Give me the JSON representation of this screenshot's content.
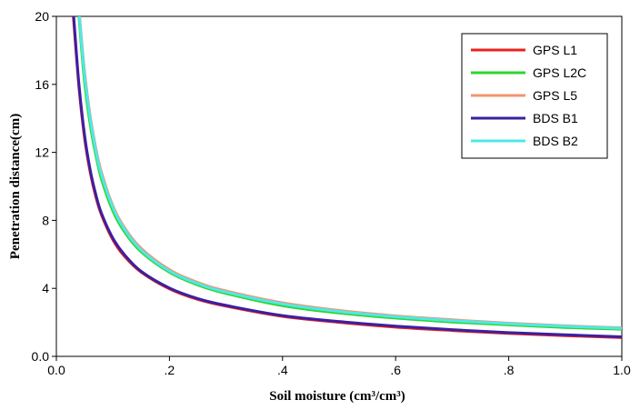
{
  "chart_data": {
    "type": "line",
    "title": "",
    "xlabel": "Soil moisture (cm³/cm³)",
    "ylabel": "Penetration distance(cm)",
    "xlim": [
      0,
      1
    ],
    "ylim": [
      0,
      20
    ],
    "x_ticks": [
      {
        "value": 0.0,
        "label": "0.0"
      },
      {
        "value": 0.2,
        "label": ".2"
      },
      {
        "value": 0.4,
        "label": ".4"
      },
      {
        "value": 0.6,
        "label": ".6"
      },
      {
        "value": 0.8,
        "label": ".8"
      },
      {
        "value": 1.0,
        "label": "1.0"
      }
    ],
    "y_ticks": [
      {
        "value": 0,
        "label": "0.0"
      },
      {
        "value": 4,
        "label": "4"
      },
      {
        "value": 8,
        "label": "8"
      },
      {
        "value": 12,
        "label": "12"
      },
      {
        "value": 16,
        "label": "16"
      },
      {
        "value": 20,
        "label": "20"
      }
    ],
    "grid": false,
    "legend_position": "top-right",
    "x": [
      0.03,
      0.04,
      0.05,
      0.06,
      0.07,
      0.08,
      0.1,
      0.12,
      0.15,
      0.2,
      0.25,
      0.3,
      0.4,
      0.5,
      0.6,
      0.7,
      0.8,
      0.9,
      1.0
    ],
    "series": [
      {
        "name": "GPS L1",
        "color": "#e8231e",
        "values": [
          20.0,
          15.8,
          12.8,
          10.8,
          9.35,
          8.3,
          6.85,
          5.9,
          4.95,
          3.97,
          3.35,
          2.95,
          2.35,
          2.0,
          1.72,
          1.52,
          1.35,
          1.22,
          1.1
        ]
      },
      {
        "name": "GPS L2C",
        "color": "#2fd42f",
        "values": [
          25.0,
          20.0,
          16.1,
          13.6,
          11.8,
          10.4,
          8.55,
          7.35,
          6.15,
          4.95,
          4.2,
          3.7,
          2.98,
          2.55,
          2.25,
          2.02,
          1.85,
          1.7,
          1.6
        ]
      },
      {
        "name": "GPS L5",
        "color": "#f2946e",
        "values": [
          25.5,
          20.5,
          16.7,
          14.1,
          12.2,
          10.8,
          8.85,
          7.6,
          6.35,
          5.1,
          4.35,
          3.85,
          3.15,
          2.7,
          2.38,
          2.15,
          1.95,
          1.8,
          1.68
        ]
      },
      {
        "name": "BDS B1",
        "color": "#3b1fa3",
        "values": [
          20.3,
          16.0,
          13.0,
          10.95,
          9.5,
          8.4,
          6.95,
          6.0,
          5.0,
          4.02,
          3.4,
          3.0,
          2.4,
          2.05,
          1.78,
          1.57,
          1.4,
          1.27,
          1.15
        ]
      },
      {
        "name": "BDS B2",
        "color": "#4fe8e8",
        "values": [
          25.3,
          20.3,
          16.5,
          13.95,
          12.05,
          10.65,
          8.75,
          7.5,
          6.25,
          5.02,
          4.28,
          3.78,
          3.08,
          2.64,
          2.33,
          2.1,
          1.92,
          1.77,
          1.65
        ]
      }
    ]
  }
}
